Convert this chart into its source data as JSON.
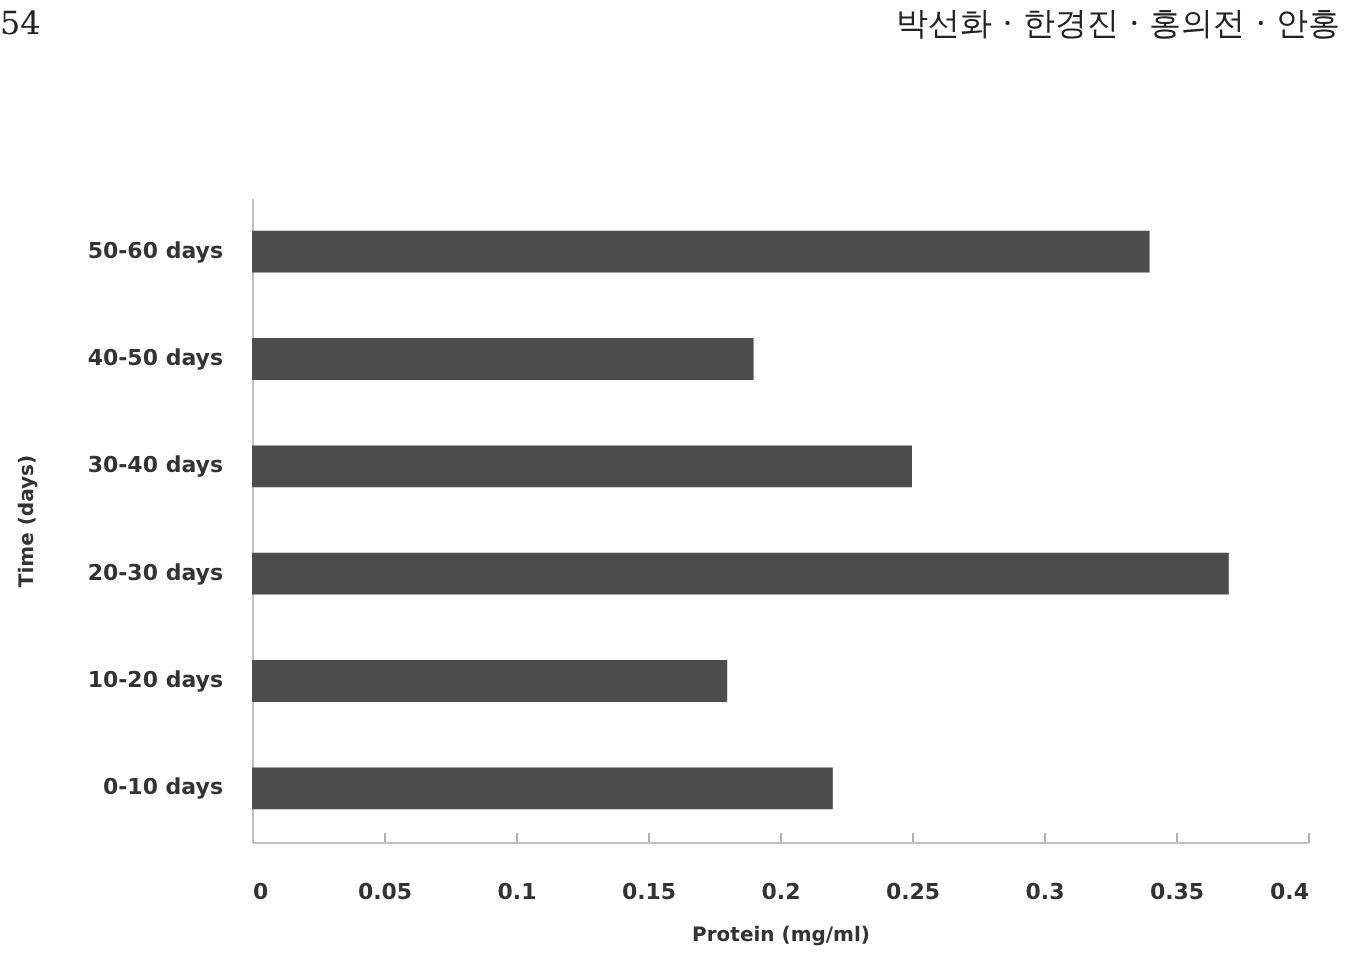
{
  "chart_data": {
    "type": "bar",
    "orientation": "horizontal",
    "categories": [
      "50-60 days",
      "40-50 days",
      "30-40 days",
      "20-30 days",
      "10-20 days",
      "0-10 days"
    ],
    "values": [
      0.34,
      0.19,
      0.25,
      0.37,
      0.18,
      0.22
    ],
    "color": "#4d4d4d",
    "xlabel": "Protein (mg/ml)",
    "ylabel": "Time (days)",
    "xlim": [
      0,
      0.4
    ],
    "xticks": [
      0,
      0.05,
      0.1,
      0.15,
      0.2,
      0.25,
      0.3,
      0.35,
      0.4
    ],
    "grid": false,
    "annotations": [
      "54",
      "박선화 · 한경진 · 홍의전 · 안홍"
    ]
  }
}
